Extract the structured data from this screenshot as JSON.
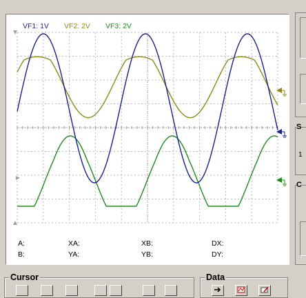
{
  "traces": [
    {
      "label": "VF1: 1V",
      "color": "#1a1f8c"
    },
    {
      "label": "VF2: 2V",
      "color": "#8c8a1a"
    },
    {
      "label": "VF3: 2V",
      "color": "#1e8a1e"
    }
  ],
  "readouts": {
    "a": "A:",
    "b": "B:",
    "xa": "XA:",
    "ya": "YA:",
    "xb": "XB:",
    "yb": "YB:",
    "dx": "DX:",
    "dy": "DY:"
  },
  "groups": {
    "cursor_title": "Cursor",
    "data_title": "Data",
    "right_s": "S",
    "right_c": "C"
  },
  "icons": {
    "trace_marker": "ground-marker-icon",
    "trigger_marker": "trigger-arrow-icon",
    "data_load": "load-data-icon",
    "data_chart": "chart-data-icon",
    "data_edit": "edit-data-icon"
  }
}
